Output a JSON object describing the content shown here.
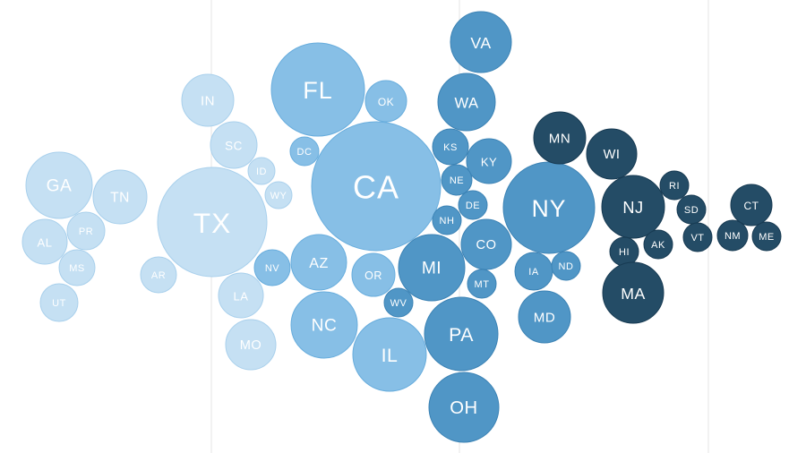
{
  "chart_data": {
    "type": "bubble",
    "grid": true,
    "legend": "none",
    "bands": [
      {
        "color": "#c5e0f3",
        "stroke": "#a9d0ec"
      },
      {
        "color": "#87bfe6",
        "stroke": "#68addd"
      },
      {
        "color": "#5096c6",
        "stroke": "#3c83b5"
      },
      {
        "color": "#244c66",
        "stroke": "#173a52"
      }
    ],
    "bubbles": [
      {
        "label": "GA",
        "band": 0,
        "size": 37
      },
      {
        "label": "TN",
        "band": 0,
        "size": 30
      },
      {
        "label": "AL",
        "band": 0,
        "size": 25
      },
      {
        "label": "PR",
        "band": 0,
        "size": 21
      },
      {
        "label": "MS",
        "band": 0,
        "size": 20
      },
      {
        "label": "UT",
        "band": 0,
        "size": 21
      },
      {
        "label": "IN",
        "band": 0,
        "size": 29
      },
      {
        "label": "SC",
        "band": 0,
        "size": 26
      },
      {
        "label": "ID",
        "band": 0,
        "size": 15
      },
      {
        "label": "WY",
        "band": 0,
        "size": 15
      },
      {
        "label": "TX",
        "band": 0,
        "size": 61
      },
      {
        "label": "AR",
        "band": 0,
        "size": 20
      },
      {
        "label": "LA",
        "band": 0,
        "size": 25
      },
      {
        "label": "MO",
        "band": 0,
        "size": 28
      },
      {
        "label": "FL",
        "band": 1,
        "size": 52
      },
      {
        "label": "OK",
        "band": 1,
        "size": 23
      },
      {
        "label": "DC",
        "band": 1,
        "size": 16
      },
      {
        "label": "CA",
        "band": 1,
        "size": 72
      },
      {
        "label": "NV",
        "band": 1,
        "size": 20
      },
      {
        "label": "AZ",
        "band": 1,
        "size": 31
      },
      {
        "label": "OR",
        "band": 1,
        "size": 24
      },
      {
        "label": "NC",
        "band": 1,
        "size": 37
      },
      {
        "label": "IL",
        "band": 1,
        "size": 41
      },
      {
        "label": "WV",
        "band": 2,
        "size": 16
      },
      {
        "label": "VA",
        "band": 2,
        "size": 34
      },
      {
        "label": "WA",
        "band": 2,
        "size": 32
      },
      {
        "label": "KS",
        "band": 2,
        "size": 20
      },
      {
        "label": "KY",
        "band": 2,
        "size": 25
      },
      {
        "label": "NE",
        "band": 2,
        "size": 17
      },
      {
        "label": "DE",
        "band": 2,
        "size": 16
      },
      {
        "label": "NH",
        "band": 2,
        "size": 16
      },
      {
        "label": "CO",
        "band": 2,
        "size": 28
      },
      {
        "label": "MI",
        "band": 2,
        "size": 37
      },
      {
        "label": "MT",
        "band": 2,
        "size": 16
      },
      {
        "label": "PA",
        "band": 2,
        "size": 41
      },
      {
        "label": "OH",
        "band": 2,
        "size": 39
      },
      {
        "label": "NY",
        "band": 2,
        "size": 51
      },
      {
        "label": "IA",
        "band": 2,
        "size": 21
      },
      {
        "label": "ND",
        "band": 2,
        "size": 16
      },
      {
        "label": "MD",
        "band": 2,
        "size": 29
      },
      {
        "label": "MN",
        "band": 3,
        "size": 29
      },
      {
        "label": "WI",
        "band": 3,
        "size": 28
      },
      {
        "label": "NJ",
        "band": 3,
        "size": 35
      },
      {
        "label": "RI",
        "band": 3,
        "size": 16
      },
      {
        "label": "SD",
        "band": 3,
        "size": 16
      },
      {
        "label": "VT",
        "band": 3,
        "size": 16
      },
      {
        "label": "HI",
        "band": 3,
        "size": 16
      },
      {
        "label": "AK",
        "band": 3,
        "size": 16
      },
      {
        "label": "MA",
        "band": 3,
        "size": 34
      },
      {
        "label": "CT",
        "band": 3,
        "size": 23
      },
      {
        "label": "NM",
        "band": 3,
        "size": 17
      },
      {
        "label": "ME",
        "band": 3,
        "size": 16
      }
    ]
  }
}
